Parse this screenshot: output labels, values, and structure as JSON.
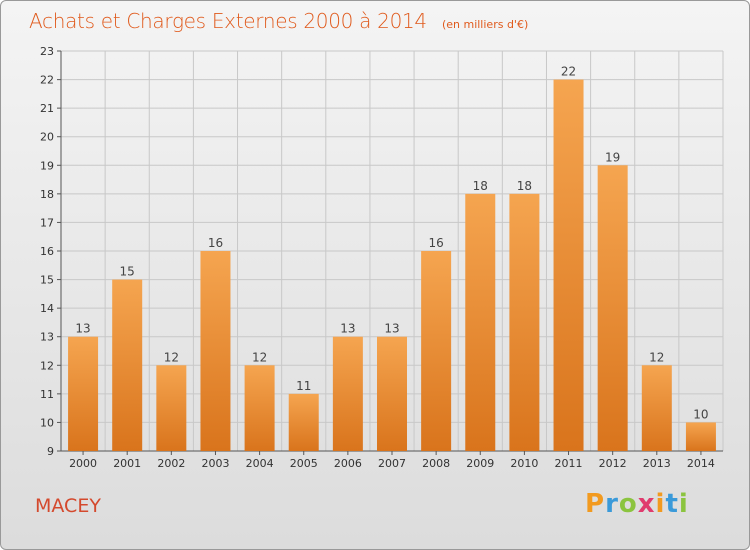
{
  "header": {
    "title": "Achats et Charges Externes 2000 à 2014",
    "subtitle": "(en milliers d'€)"
  },
  "footer": {
    "town": "MACEY",
    "logo": "Proxiti"
  },
  "colors": {
    "bar_top": "#f5a550",
    "bar_bottom": "#d9741c",
    "title": "#e05a1c",
    "town": "#d4492d"
  },
  "chart_data": {
    "type": "bar",
    "title": "Achats et Charges Externes 2000 à 2014",
    "subtitle": "(en milliers d'€)",
    "categories": [
      "2000",
      "2001",
      "2002",
      "2003",
      "2004",
      "2005",
      "2006",
      "2007",
      "2008",
      "2009",
      "2010",
      "2011",
      "2012",
      "2013",
      "2014"
    ],
    "values": [
      13,
      15,
      12,
      16,
      12,
      11,
      13,
      13,
      16,
      18,
      18,
      22,
      19,
      12,
      10
    ],
    "ylim": [
      9,
      23
    ],
    "yticks": [
      9,
      10,
      11,
      12,
      13,
      14,
      15,
      16,
      17,
      18,
      19,
      20,
      21,
      22,
      23
    ],
    "grid": true,
    "legend": "none"
  }
}
